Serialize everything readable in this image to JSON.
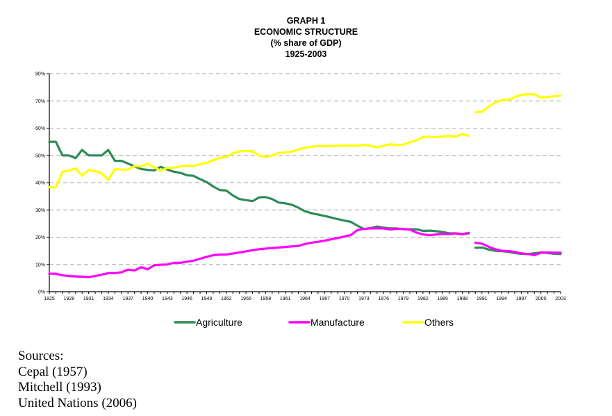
{
  "chart_data": {
    "type": "line",
    "title_lines": [
      "GRAPH 1",
      "ECONOMIC STRUCTURE",
      "(% share of GDP)",
      "1925-2003"
    ],
    "xlabel": "",
    "ylabel": "",
    "xlim": [
      1925,
      2003
    ],
    "ylim": [
      0,
      80
    ],
    "y_ticks": [
      0,
      10,
      20,
      30,
      40,
      50,
      60,
      70,
      80
    ],
    "y_tick_labels": [
      "0%",
      "10%",
      "20%",
      "30%",
      "40%",
      "50%",
      "60%",
      "70%",
      "80%"
    ],
    "x_tick_labels": [
      "1925",
      "1928",
      "1931",
      "1934",
      "1937",
      "1940",
      "1943",
      "1946",
      "1949",
      "1952",
      "1955",
      "1958",
      "1961",
      "1964",
      "1967",
      "1970",
      "1973",
      "1976",
      "1979",
      "1982",
      "1985",
      "1988",
      "1991",
      "1994",
      "1997",
      "2000",
      "2003"
    ],
    "grid": "horizontal-dashed",
    "legend_position": "bottom",
    "series": [
      {
        "name": "Agriculture",
        "color": "#2e8b57",
        "segments": [
          {
            "x": [
              1925,
              1926,
              1927,
              1928,
              1929,
              1930,
              1931,
              1932,
              1933,
              1934,
              1935,
              1936,
              1937,
              1938,
              1939,
              1940,
              1941,
              1942,
              1943,
              1944,
              1945,
              1946,
              1947,
              1948,
              1949,
              1950,
              1951,
              1952,
              1953,
              1954,
              1955,
              1956,
              1957,
              1958,
              1959,
              1960,
              1961,
              1962,
              1963,
              1964,
              1965,
              1966,
              1967,
              1968,
              1969,
              1970,
              1971,
              1972,
              1973,
              1974,
              1975,
              1976,
              1977,
              1978,
              1979,
              1980,
              1981,
              1982,
              1983,
              1984,
              1985,
              1986,
              1987,
              1988,
              1989
            ],
            "y": [
              55,
              55,
              50,
              50,
              49,
              52,
              50,
              50,
              50,
              52,
              48,
              48,
              47,
              46,
              45,
              44.7,
              44.5,
              45.8,
              44.8,
              44,
              43.6,
              42.7,
              42.5,
              41.3,
              40.2,
              38.6,
              37.3,
              37.1,
              35.3,
              34,
              33.6,
              33.2,
              34.6,
              34.7,
              34,
              32.7,
              32.4,
              31.9,
              30.8,
              29.5,
              28.8,
              28.3,
              27.8,
              27.2,
              26.6,
              26.1,
              25.6,
              24.2,
              23,
              23.3,
              23.9,
              23.5,
              23.2,
              23.2,
              22.9,
              22.9,
              22.9,
              22.3,
              22.4,
              22.2,
              21.9,
              21.4,
              21.4,
              21.2,
              21.4
            ]
          },
          {
            "x": [
              1990,
              1991,
              1992,
              1993,
              1994,
              1995,
              1996,
              1997,
              1998,
              1999,
              2000,
              2001,
              2002,
              2003
            ],
            "y": [
              16.1,
              16.2,
              15.5,
              15.0,
              14.9,
              14.6,
              14.2,
              13.9,
              13.8,
              14.1,
              14.4,
              14.2,
              13.9,
              13.8
            ]
          }
        ]
      },
      {
        "name": "Manufacture",
        "color": "#ff00ff",
        "segments": [
          {
            "x": [
              1925,
              1926,
              1927,
              1928,
              1929,
              1930,
              1931,
              1932,
              1933,
              1934,
              1935,
              1936,
              1937,
              1938,
              1939,
              1940,
              1941,
              1942,
              1943,
              1944,
              1945,
              1946,
              1947,
              1948,
              1949,
              1950,
              1951,
              1952,
              1953,
              1954,
              1955,
              1956,
              1957,
              1958,
              1959,
              1960,
              1961,
              1962,
              1963,
              1964,
              1965,
              1966,
              1967,
              1968,
              1969,
              1970,
              1971,
              1972,
              1973,
              1974,
              1975,
              1976,
              1977,
              1978,
              1979,
              1980,
              1981,
              1982,
              1983,
              1984,
              1985,
              1986,
              1987,
              1988,
              1989
            ],
            "y": [
              6.6,
              6.6,
              6,
              5.7,
              5.6,
              5.5,
              5.4,
              5.7,
              6.3,
              6.8,
              6.8,
              7.1,
              8.1,
              7.8,
              9,
              8.2,
              9.7,
              9.9,
              10,
              10.6,
              10.6,
              11,
              11.4,
              12.1,
              12.8,
              13.4,
              13.6,
              13.6,
              14,
              14.4,
              14.8,
              15.2,
              15.6,
              15.8,
              16,
              16.2,
              16.4,
              16.6,
              16.8,
              17.5,
              18,
              18.3,
              18.7,
              19.2,
              19.7,
              20.2,
              20.8,
              22.6,
              23,
              23.2,
              23.2,
              23.2,
              22.8,
              23.1,
              23,
              22.8,
              21.7,
              21,
              20.7,
              21,
              21.2,
              21.1,
              21.4,
              21,
              21.6
            ]
          },
          {
            "x": [
              1990,
              1991,
              1992,
              1993,
              1994,
              1995,
              1996,
              1997,
              1998,
              1999,
              2000,
              2001,
              2002,
              2003
            ],
            "y": [
              18,
              17.6,
              16.5,
              15.6,
              15,
              14.9,
              14.6,
              14.1,
              13.8,
              13.4,
              14.3,
              14.4,
              14.3,
              14.3
            ]
          }
        ]
      },
      {
        "name": "Others",
        "color": "#ffff00",
        "segments": [
          {
            "x": [
              1925,
              1926,
              1927,
              1928,
              1929,
              1930,
              1931,
              1932,
              1933,
              1934,
              1935,
              1936,
              1937,
              1938,
              1939,
              1940,
              1941,
              1942,
              1943,
              1944,
              1945,
              1946,
              1947,
              1948,
              1949,
              1950,
              1951,
              1952,
              1953,
              1954,
              1955,
              1956,
              1957,
              1958,
              1959,
              1960,
              1961,
              1962,
              1963,
              1964,
              1965,
              1966,
              1967,
              1968,
              1969,
              1970,
              1971,
              1972,
              1973,
              1974,
              1975,
              1976,
              1977,
              1978,
              1979,
              1980,
              1981,
              1982,
              1983,
              1984,
              1985,
              1986,
              1987,
              1988,
              1989
            ],
            "y": [
              38.3,
              38.3,
              44,
              44.4,
              45.3,
              42.6,
              44.6,
              44.2,
              43.4,
              41,
              45,
              44.8,
              44.8,
              46.1,
              45.9,
              47,
              45.6,
              44.4,
              45.4,
              45.5,
              46,
              46.2,
              46.1,
              46.8,
              47.3,
              48.2,
              49.1,
              49.4,
              50.8,
              51.5,
              51.6,
              51.5,
              49.9,
              49.4,
              50,
              50.9,
              51.1,
              51.4,
              52.2,
              52.8,
              53.2,
              53.4,
              53.4,
              53.5,
              53.5,
              53.6,
              53.6,
              53.5,
              53.9,
              53.5,
              53,
              53.5,
              54.1,
              53.8,
              53.9,
              54.8,
              55.6,
              56.7,
              56.9,
              56.6,
              56.9,
              57.2,
              56.9,
              57.8,
              57.2
            ]
          },
          {
            "x": [
              1990,
              1991,
              1992,
              1993,
              1994,
              1995,
              1996,
              1997,
              1998,
              1999,
              2000,
              2001,
              2002,
              2003
            ],
            "y": [
              65.8,
              66,
              67.8,
              69.4,
              70.3,
              70.4,
              71.4,
              72.2,
              72.4,
              72.4,
              71.2,
              71.4,
              71.7,
              71.9
            ]
          }
        ]
      }
    ]
  },
  "legend": {
    "items": [
      {
        "label": "Agriculture",
        "color": "#2e8b57"
      },
      {
        "label": "Manufacture",
        "color": "#ff00ff"
      },
      {
        "label": "Others",
        "color": "#ffff00"
      }
    ]
  },
  "sources": {
    "heading": "Sources:",
    "items": [
      "Cepal (1957)",
      "Mitchell (1993)",
      "United Nations (2006)"
    ]
  }
}
